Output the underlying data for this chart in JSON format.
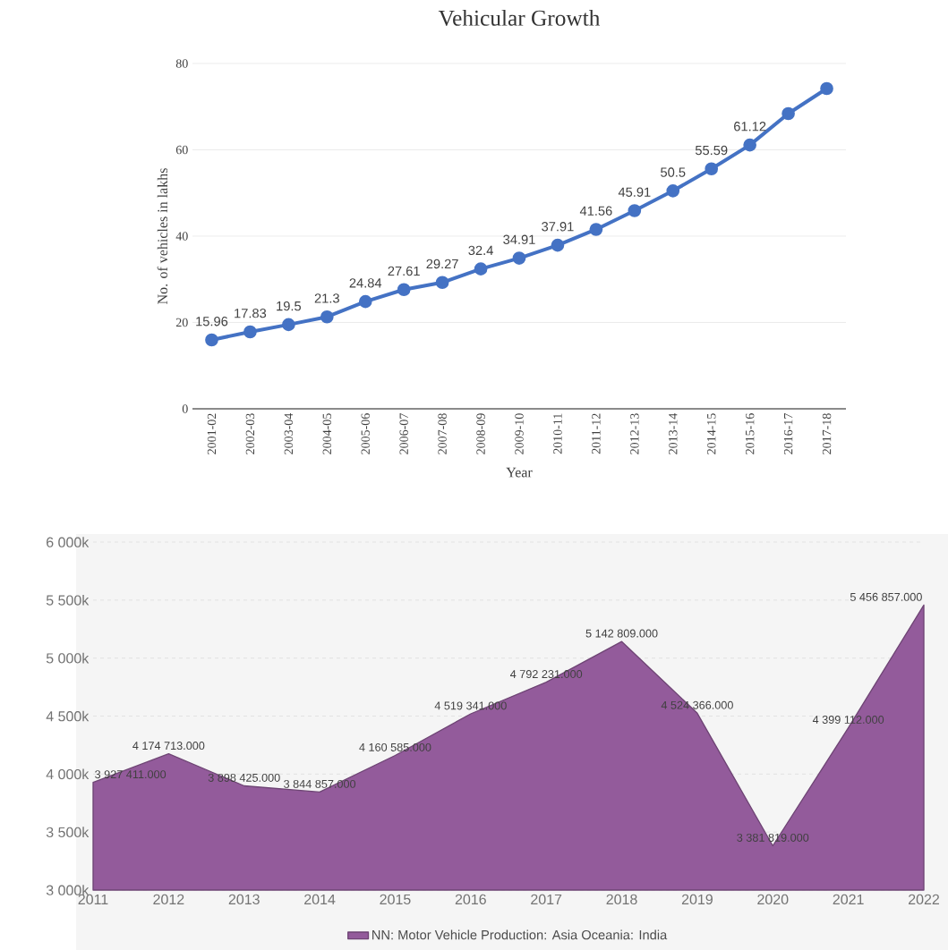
{
  "chart_data": [
    {
      "type": "line",
      "title": "Vehicular Growth",
      "xlabel": "Year",
      "ylabel": "No. of vehicles in lakhs",
      "categories": [
        "2001-02",
        "2002-03",
        "2003-04",
        "2004-05",
        "2005-06",
        "2006-07",
        "2007-08",
        "2008-09",
        "2009-10",
        "2010-11",
        "2011-12",
        "2012-13",
        "2013-14",
        "2014-15",
        "2015-16",
        "2016-17",
        "2017-18"
      ],
      "values": [
        15.96,
        17.83,
        19.5,
        21.3,
        24.84,
        27.61,
        29.27,
        32.4,
        34.91,
        37.91,
        41.56,
        45.91,
        50.5,
        55.59,
        61.12,
        68.4,
        74.2
      ],
      "value_labels": [
        "15.96",
        "17.83",
        "19.5",
        "21.3",
        "24.84",
        "27.61",
        "29.27",
        "32.4",
        "34.91",
        "37.91",
        "41.56",
        "45.91",
        "50.5",
        "55.59",
        "61.12",
        null,
        null
      ],
      "color": "#4472c4",
      "ylim": [
        0,
        80
      ],
      "yticks": [
        0,
        20,
        40,
        60,
        80
      ],
      "grid": "y",
      "marker": "circle",
      "line_style": "solid"
    },
    {
      "type": "area",
      "x": [
        2011,
        2012,
        2013,
        2014,
        2015,
        2016,
        2017,
        2018,
        2019,
        2020,
        2021,
        2022
      ],
      "series": [
        {
          "name": "NN: Motor Vehicle Production: Asia Oceania: India",
          "color": "#935b9b",
          "values": [
            3927411,
            4174713,
            3898425,
            3844857,
            4160585,
            4519341,
            4792231,
            5142809,
            4524366,
            3381819,
            4399112,
            5456857
          ],
          "value_labels": [
            "3 927 411.000",
            "4 174 713.000",
            "3 898 425.000",
            "3 844 857.000",
            "4 160 585.000",
            "4 519 341.000",
            "4 792 231.000",
            "5 142 809.000",
            "4 524 366.000",
            "3 381 819.000",
            "4 399 112.000",
            "5 456 857.000"
          ]
        }
      ],
      "xlim": [
        2011,
        2022
      ],
      "xticks": [
        2011,
        2012,
        2013,
        2014,
        2015,
        2016,
        2017,
        2018,
        2019,
        2020,
        2021,
        2022
      ],
      "ylim": [
        3000000,
        6000000
      ],
      "yticks": [
        {
          "value": 3000000,
          "label": "3 000k"
        },
        {
          "value": 3500000,
          "label": "3 500k"
        },
        {
          "value": 4000000,
          "label": "4 000k"
        },
        {
          "value": 4500000,
          "label": "4 500k"
        },
        {
          "value": 5000000,
          "label": "5 000k"
        },
        {
          "value": 5500000,
          "label": "5 500k"
        },
        {
          "value": 6000000,
          "label": "6 000k"
        }
      ],
      "grid": "y",
      "legend": "bottom",
      "marker": "none"
    }
  ]
}
